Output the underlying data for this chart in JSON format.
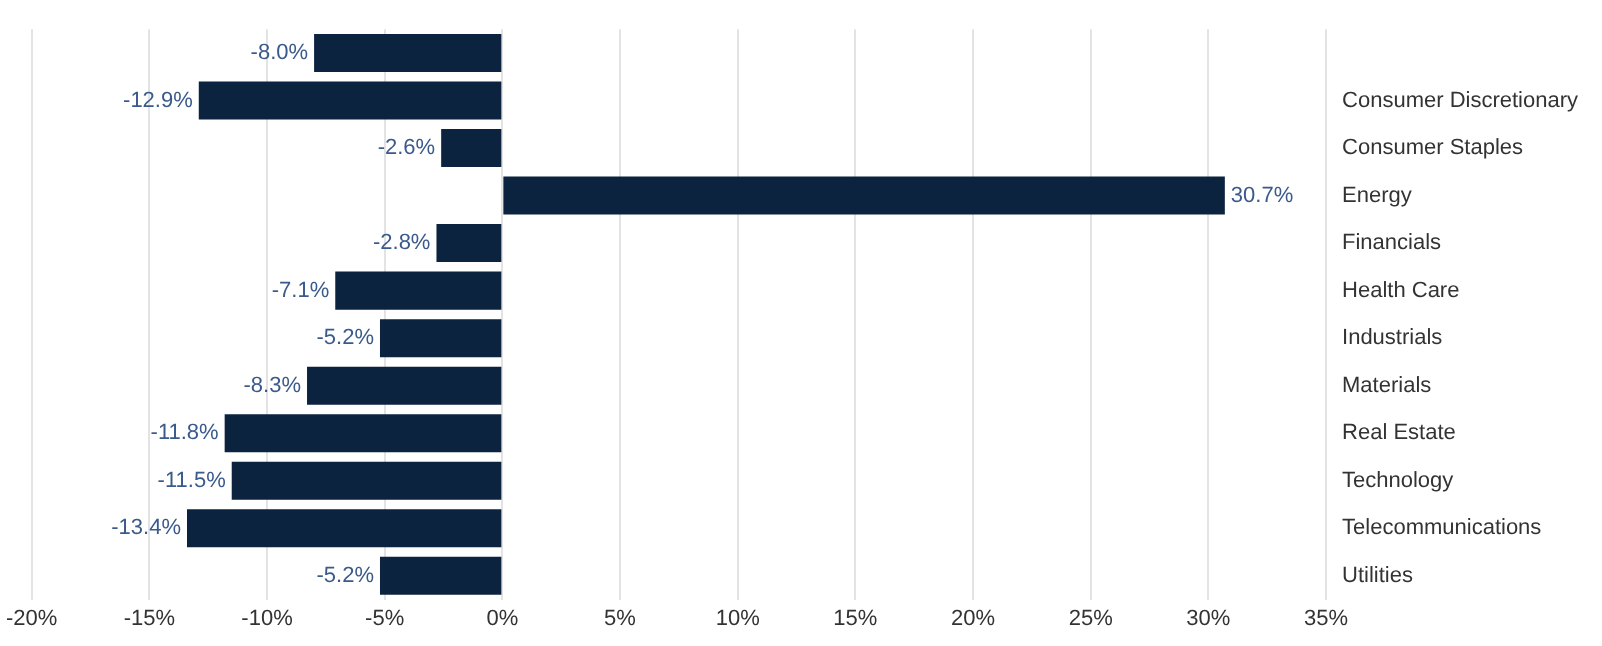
{
  "chart_data": {
    "type": "bar",
    "orientation": "horizontal",
    "categories": [
      null,
      "Consumer Discretionary",
      "Consumer Staples",
      "Energy",
      "Financials",
      "Health Care",
      "Industrials",
      "Materials",
      "Real Estate",
      "Technology",
      "Telecommunications",
      "Utilities"
    ],
    "values": [
      -8.0,
      -12.9,
      -2.6,
      30.7,
      -2.8,
      -7.1,
      -5.2,
      -8.3,
      -11.8,
      -11.5,
      -13.4,
      -5.2
    ],
    "value_labels": [
      "-8.0%",
      "-12.9%",
      "-2.6%",
      "30.7%",
      "-2.8%",
      "-7.1%",
      "-5.2%",
      "-8.3%",
      "-11.8%",
      "-11.5%",
      "-13.4%",
      "-5.2%"
    ],
    "color": "#0c2340",
    "xlim": [
      -20,
      35
    ],
    "xticks": [
      {
        "value": -20,
        "label": "-20%"
      },
      {
        "value": -15,
        "label": "-15%"
      },
      {
        "value": -10,
        "label": "-10%"
      },
      {
        "value": -5,
        "label": "-5%"
      },
      {
        "value": 0,
        "label": "0%"
      },
      {
        "value": 5,
        "label": "5%"
      },
      {
        "value": 10,
        "label": "10%"
      },
      {
        "value": 15,
        "label": "15%"
      },
      {
        "value": 20,
        "label": "20%"
      },
      {
        "value": 25,
        "label": "25%"
      },
      {
        "value": 30,
        "label": "30%"
      },
      {
        "value": 35,
        "label": "35%"
      }
    ],
    "grid": "x",
    "legend": false
  }
}
